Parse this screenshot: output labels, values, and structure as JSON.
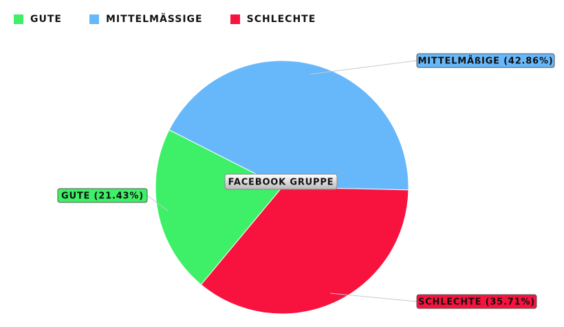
{
  "chart_data": {
    "type": "pie",
    "title": "FACEBOOK GRUPPE",
    "slices": [
      {
        "name": "GUTE",
        "value": 21.43,
        "label": "GUTE (21.43%)",
        "color": "#3ef067"
      },
      {
        "name": "MITTELMÄßIGE",
        "value": 42.86,
        "label": "MITTELMÄßIGE (42.86%)",
        "color": "#67b8fb"
      },
      {
        "name": "SCHLECHTE",
        "value": 35.71,
        "label": "SCHLECHTE (35.71%)",
        "color": "#f8133f"
      }
    ],
    "legend_position": "top-left"
  }
}
